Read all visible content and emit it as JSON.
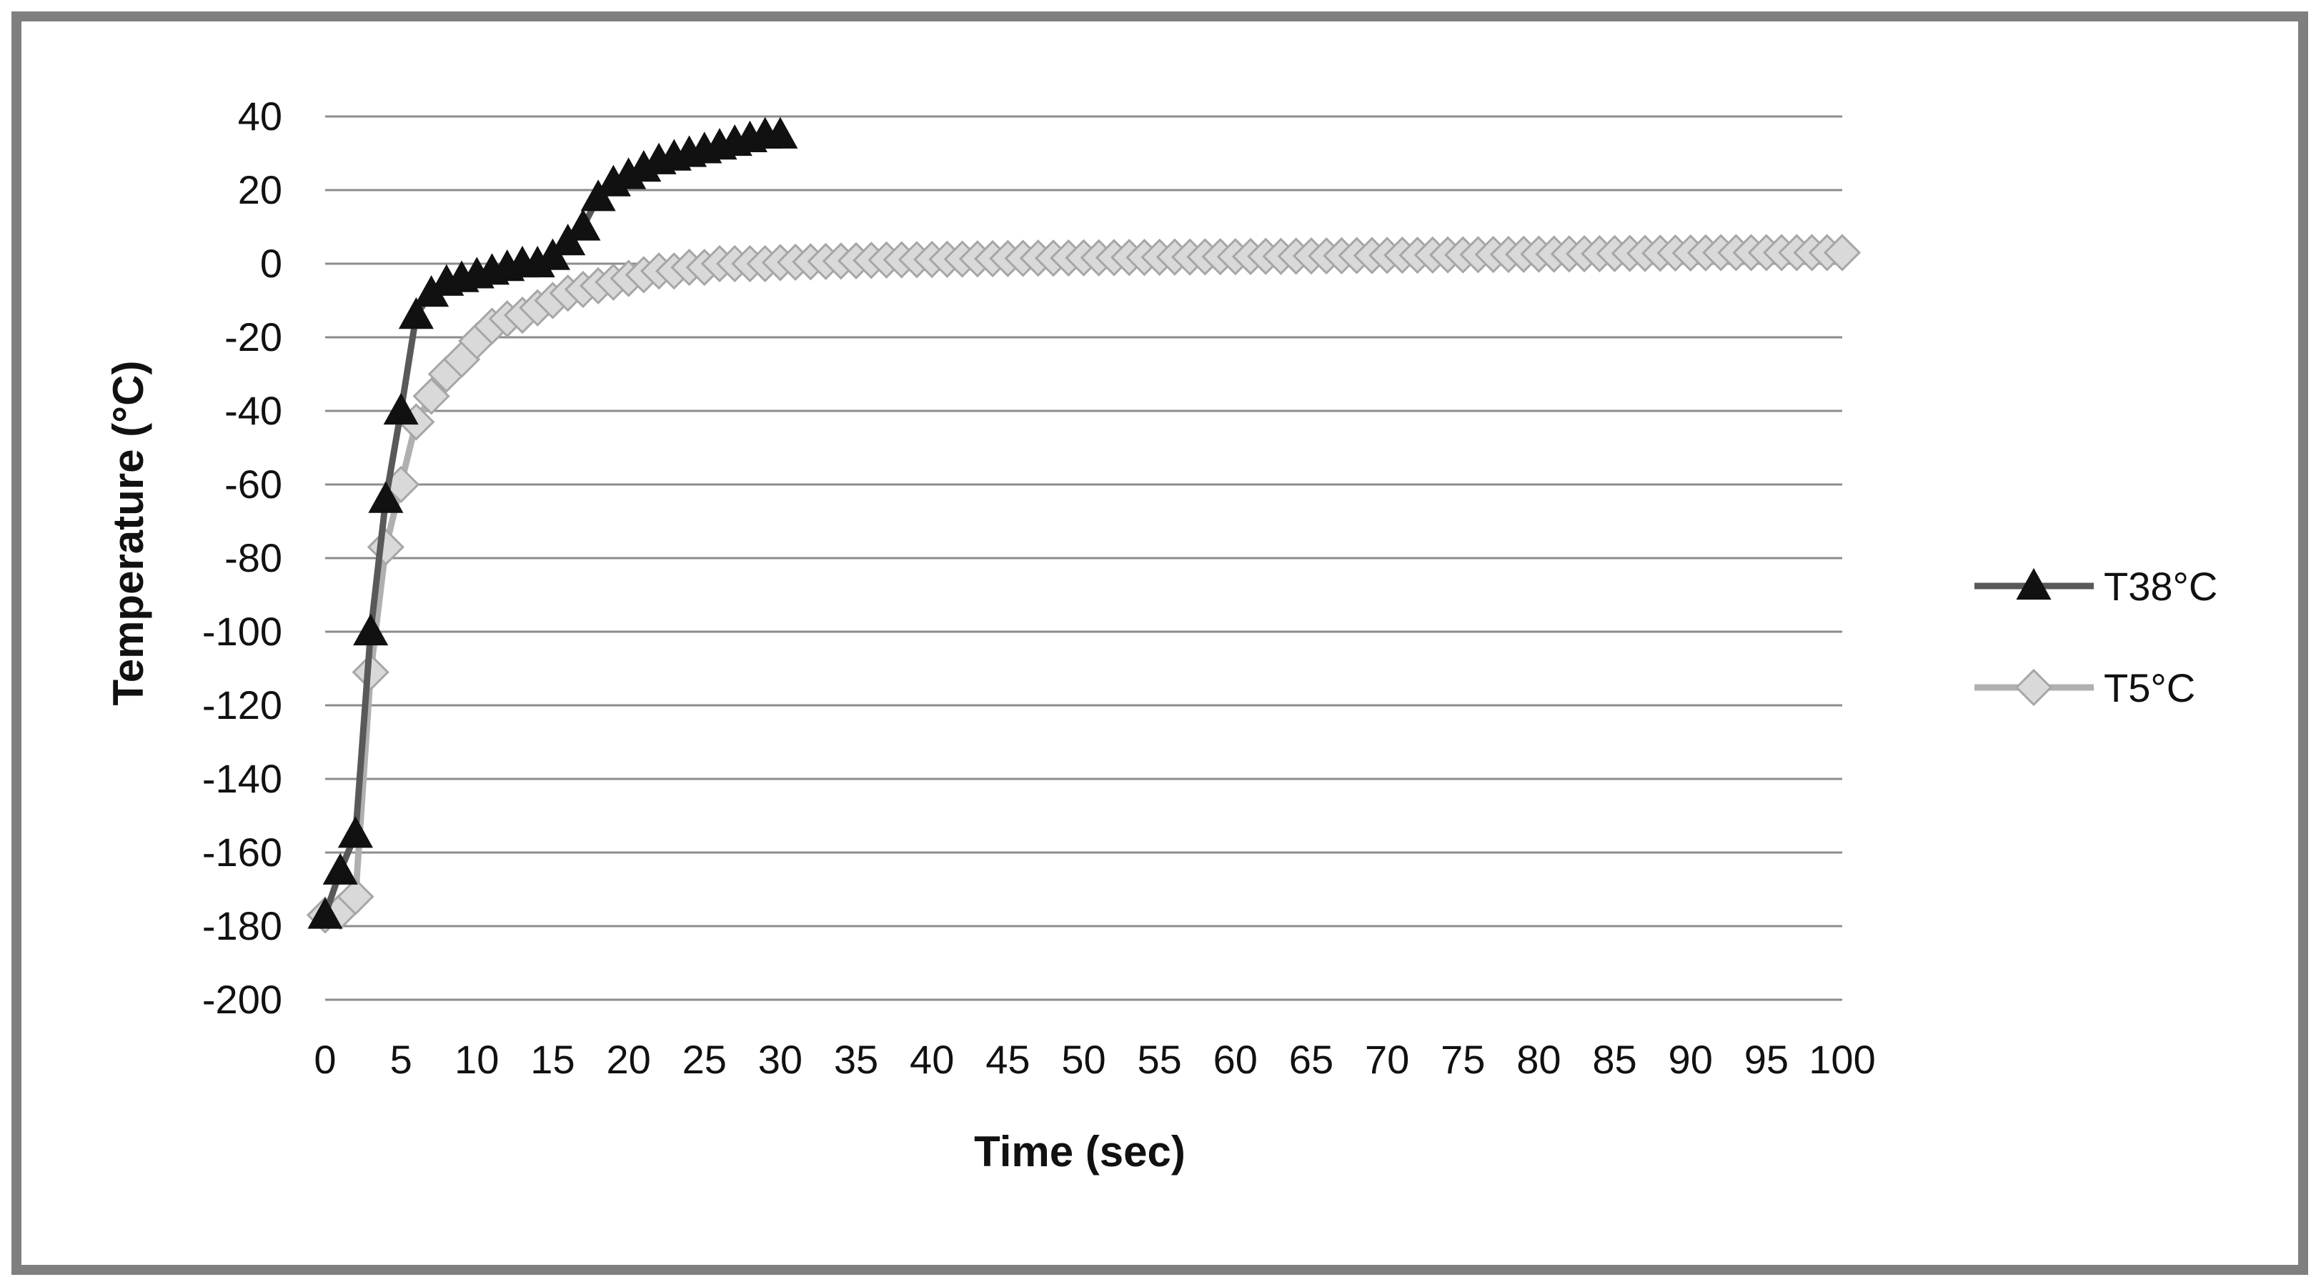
{
  "chart_data": {
    "type": "line",
    "title": "",
    "xlabel": "Time (sec)",
    "ylabel": "Temperature (°C)",
    "xlim": [
      0,
      100
    ],
    "ylim": [
      -200,
      40
    ],
    "x_ticks": [
      "0",
      "5",
      "10",
      "15",
      "20",
      "25",
      "30",
      "35",
      "40",
      "45",
      "50",
      "55",
      "60",
      "65",
      "70",
      "75",
      "80",
      "85",
      "90",
      "95",
      "100"
    ],
    "y_ticks": [
      "40",
      "20",
      "0",
      "-20",
      "-40",
      "-60",
      "-80",
      "-100",
      "-120",
      "-140",
      "-160",
      "-180",
      "-200"
    ],
    "grid": "horizontal",
    "legend_position": "right",
    "series": [
      {
        "name": "T38°C",
        "color": "#595959",
        "marker": "triangle",
        "marker_fill": "#111111",
        "x": [
          0,
          1,
          2,
          3,
          4,
          5,
          6,
          7,
          8,
          9,
          10,
          11,
          12,
          13,
          14,
          15,
          16,
          17,
          18,
          19,
          20,
          21,
          22,
          23,
          24,
          25,
          26,
          27,
          28,
          29,
          30
        ],
        "y": [
          -177,
          -165,
          -155,
          -100,
          -64,
          -40,
          -14,
          -8,
          -5,
          -4,
          -3,
          -2,
          -1,
          0,
          0,
          2,
          6,
          10,
          18,
          22,
          24,
          26,
          28,
          29,
          30,
          31,
          32,
          33,
          34,
          35,
          35
        ]
      },
      {
        "name": "T5°C",
        "color": "#b0b0b0",
        "marker": "diamond",
        "marker_fill": "#d9d9d9",
        "x": [
          0,
          1,
          2,
          3,
          4,
          5,
          6,
          7,
          8,
          9,
          10,
          11,
          12,
          13,
          14,
          15,
          16,
          17,
          18,
          19,
          20,
          21,
          22,
          23,
          24,
          25,
          26,
          27,
          28,
          29,
          30,
          31,
          32,
          33,
          34,
          35,
          36,
          37,
          38,
          39,
          40,
          41,
          42,
          43,
          44,
          45,
          46,
          47,
          48,
          49,
          50,
          51,
          52,
          53,
          54,
          55,
          56,
          57,
          58,
          59,
          60,
          61,
          62,
          63,
          64,
          65,
          66,
          67,
          68,
          69,
          70,
          71,
          72,
          73,
          74,
          75,
          76,
          77,
          78,
          79,
          80,
          81,
          82,
          83,
          84,
          85,
          86,
          87,
          88,
          89,
          90,
          91,
          92,
          93,
          94,
          95,
          96,
          97,
          98,
          99,
          100
        ],
        "y": [
          -177,
          -176,
          -172,
          -111,
          -77,
          -60,
          -43,
          -36,
          -30,
          -26,
          -21,
          -17,
          -15,
          -14,
          -12,
          -10,
          -8,
          -7,
          -6,
          -5,
          -4,
          -3,
          -2,
          -2,
          -1,
          -1,
          0,
          0,
          0,
          0,
          0.3,
          0.4,
          0.5,
          0.6,
          0.7,
          0.8,
          0.9,
          1,
          1.05,
          1.1,
          1.15,
          1.2,
          1.25,
          1.3,
          1.35,
          1.4,
          1.45,
          1.5,
          1.5,
          1.55,
          1.6,
          1.6,
          1.65,
          1.7,
          1.7,
          1.75,
          1.8,
          1.8,
          1.85,
          1.9,
          1.9,
          1.95,
          2,
          2,
          2.05,
          2.1,
          2.1,
          2.15,
          2.2,
          2.2,
          2.25,
          2.3,
          2.3,
          2.35,
          2.4,
          2.4,
          2.45,
          2.5,
          2.5,
          2.55,
          2.6,
          2.6,
          2.65,
          2.7,
          2.7,
          2.75,
          2.8,
          2.8,
          2.85,
          2.9,
          2.9,
          2.95,
          3,
          3,
          3,
          3,
          3,
          3,
          3,
          3,
          3
        ]
      }
    ]
  }
}
